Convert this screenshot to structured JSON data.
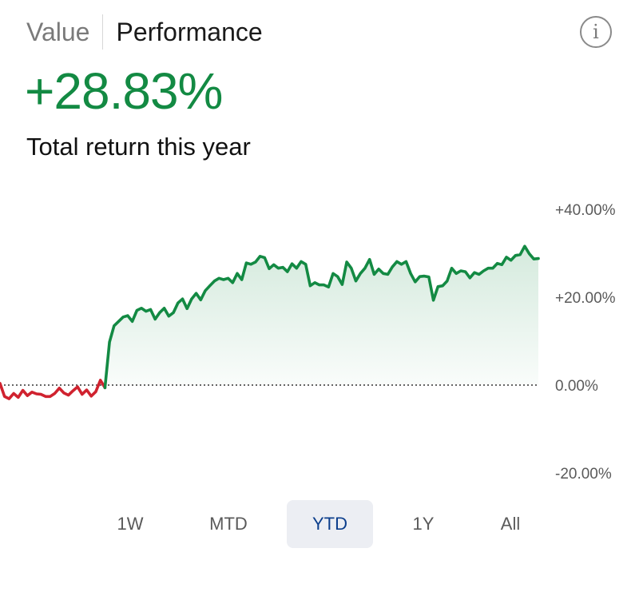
{
  "tabs": {
    "value": "Value",
    "performance": "Performance",
    "active": "Performance"
  },
  "info_icon": {
    "glyph": "i",
    "icon": "info-icon"
  },
  "summary": {
    "return": "+28.83%",
    "caption": "Total return this year"
  },
  "colors": {
    "positive": "#138a43",
    "negative": "#d0222f",
    "active_range_text": "#0c3e8c",
    "active_range_bg": "#eceef3"
  },
  "ranges": [
    {
      "label": "1W"
    },
    {
      "label": "MTD"
    },
    {
      "label": "YTD",
      "active": true
    },
    {
      "label": "1Y"
    },
    {
      "label": "All"
    }
  ],
  "chart_data": {
    "type": "area",
    "title": "",
    "xlabel": "",
    "ylabel": "",
    "ylim": [
      -20,
      40
    ],
    "yticks": [
      "+40.00%",
      "+20.00%",
      "0.00%",
      "-20.00%"
    ],
    "ytick_values": [
      40,
      20,
      0,
      -20
    ],
    "baseline": 0,
    "grid": false,
    "series": [
      {
        "values": [
          0.4,
          -2.6,
          -3.1,
          -1.9,
          -2.8,
          -1.2,
          -2.4,
          -1.6,
          -2.0,
          -2.1,
          -2.6,
          -2.6,
          -1.9,
          -0.7,
          -1.8,
          -2.3,
          -1.3,
          -0.4,
          -2.1,
          -1.1,
          -2.5,
          -1.5,
          1.1,
          -0.6,
          9.8,
          13.5,
          14.5,
          15.5,
          15.8,
          14.5,
          17.0,
          17.5,
          16.8,
          17.2,
          15.0,
          16.5,
          17.5,
          15.7,
          16.5,
          18.7,
          19.6,
          17.4,
          19.6,
          20.9,
          19.4,
          21.5,
          22.6,
          23.7,
          24.3,
          24.0,
          24.3,
          23.3,
          25.4,
          24.0,
          27.8,
          27.5,
          28.0,
          29.3,
          29.0,
          26.5,
          27.4,
          26.6,
          26.8,
          25.8,
          27.6,
          26.6,
          28.1,
          27.5,
          22.6,
          23.3,
          22.8,
          22.8,
          22.3,
          25.4,
          24.7,
          22.9,
          28.0,
          26.6,
          23.7,
          25.4,
          26.6,
          28.6,
          25.2,
          26.4,
          25.4,
          25.2,
          26.9,
          28.1,
          27.5,
          28.1,
          25.4,
          23.5,
          24.7,
          24.8,
          24.6,
          19.3,
          22.4,
          22.6,
          23.7,
          26.6,
          25.4,
          26.0,
          25.8,
          24.4,
          25.6,
          25.2,
          26.0,
          26.6,
          26.6,
          27.7,
          27.4,
          29.1,
          28.4,
          29.5,
          29.7,
          31.6,
          29.9,
          28.7,
          28.8
        ]
      }
    ]
  }
}
